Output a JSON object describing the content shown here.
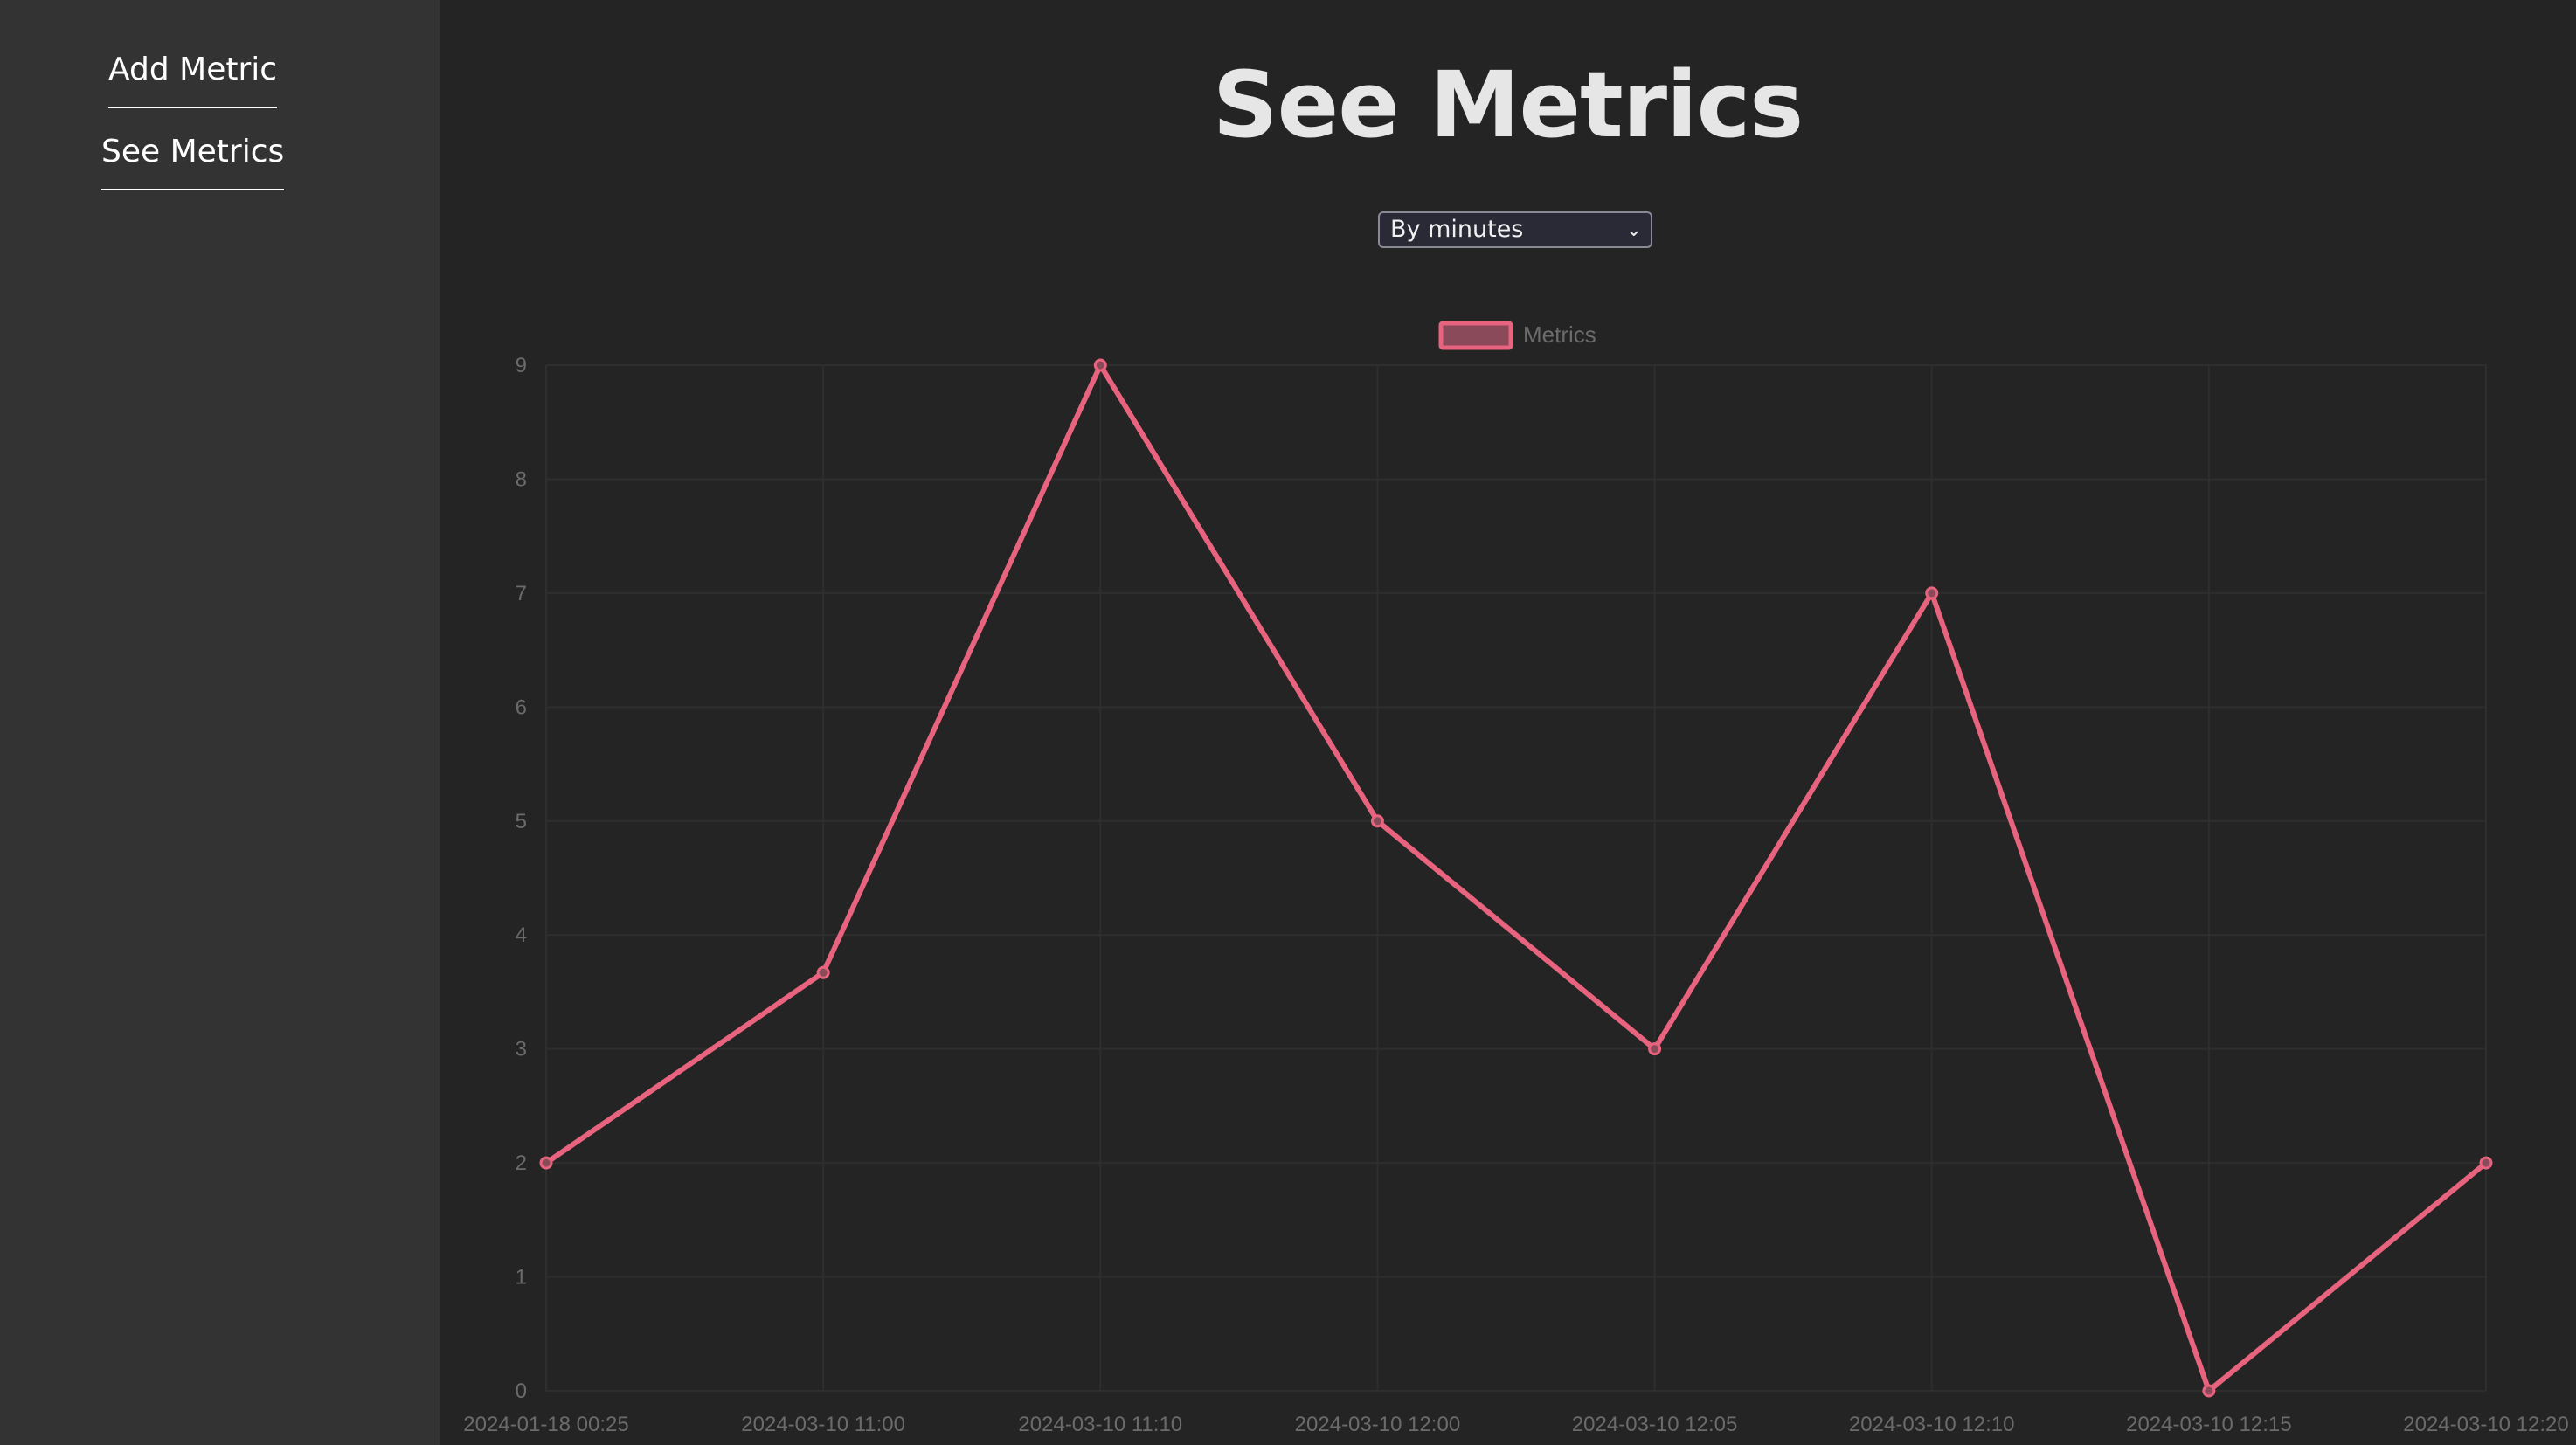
{
  "nav": {
    "add_metric": "Add Metric",
    "see_metrics": "See Metrics"
  },
  "page": {
    "title": "See Metrics"
  },
  "filter": {
    "selected": "By minutes"
  },
  "colors": {
    "line": "#e8637e",
    "legend_fill": "#8a4a5a",
    "grid": "#2e2e2e",
    "tick": "#6b6b6b"
  },
  "chart_data": {
    "type": "line",
    "title": "",
    "legend": [
      "Metrics"
    ],
    "legend_position": "top-center",
    "categories": [
      "2024-01-18 00:25",
      "2024-03-10 11:00",
      "2024-03-10 11:10",
      "2024-03-10 12:00",
      "2024-03-10 12:05",
      "2024-03-10 12:10",
      "2024-03-10 12:15",
      "2024-03-10 12:20"
    ],
    "series": [
      {
        "name": "Metrics",
        "values": [
          2,
          3.67,
          9,
          5,
          3,
          7,
          0,
          2
        ]
      }
    ],
    "ylim": [
      0,
      9
    ],
    "yticks": [
      "0",
      "1",
      "2",
      "3",
      "4",
      "5",
      "6",
      "7",
      "8",
      "9"
    ],
    "grid": true,
    "xlabel": "",
    "ylabel": ""
  }
}
